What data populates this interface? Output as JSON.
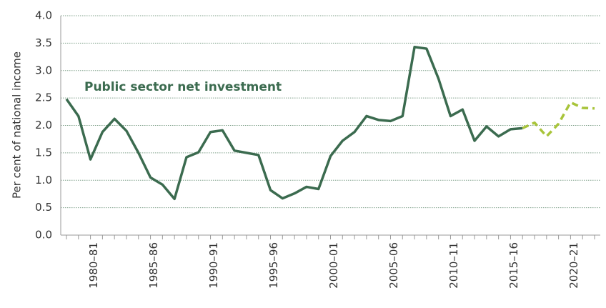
{
  "chart_data": {
    "type": "line",
    "ylabel": "Per cent of national income",
    "annotations": [
      "Public sector net investment"
    ],
    "categories": [
      null,
      null,
      "1980–81",
      null,
      null,
      null,
      null,
      "1985–86",
      null,
      null,
      null,
      null,
      "1990–91",
      null,
      null,
      null,
      null,
      "1995–96",
      null,
      null,
      null,
      null,
      "2000–01",
      null,
      null,
      null,
      null,
      "2005–06",
      null,
      null,
      null,
      null,
      "2010–11",
      null,
      null,
      null,
      null,
      "2015–16",
      null,
      null,
      null,
      null,
      "2020–21",
      null,
      null
    ],
    "series": [
      {
        "color": "#3b6b4f",
        "dash": false,
        "values": [
          2.48,
          2.17,
          1.38,
          1.88,
          2.12,
          1.9,
          1.5,
          1.05,
          0.92,
          0.66,
          1.42,
          1.51,
          1.88,
          1.91,
          1.54,
          1.5,
          1.46,
          0.82,
          0.67,
          0.76,
          0.88,
          0.84,
          1.44,
          1.72,
          1.88,
          2.17,
          2.1,
          2.08,
          2.17,
          3.43,
          3.4,
          2.85,
          2.17,
          2.29,
          1.72,
          1.98,
          1.8,
          1.93,
          1.95,
          null,
          null,
          null,
          null,
          null,
          null
        ]
      },
      {
        "color": "#a8c43a",
        "dash": true,
        "values": [
          null,
          null,
          null,
          null,
          null,
          null,
          null,
          null,
          null,
          null,
          null,
          null,
          null,
          null,
          null,
          null,
          null,
          null,
          null,
          null,
          null,
          null,
          null,
          null,
          null,
          null,
          null,
          null,
          null,
          null,
          null,
          null,
          null,
          null,
          null,
          null,
          null,
          null,
          1.95,
          2.05,
          1.8,
          2.03,
          2.42,
          2.32,
          2.31
        ]
      }
    ],
    "ylim": [
      0,
      4
    ],
    "yticks": [
      {
        "value": 0,
        "label": "0.0"
      },
      0.5,
      {
        "value": 1,
        "label": "1.0"
      },
      1.5,
      {
        "value": 2,
        "label": "2.0"
      },
      2.5,
      {
        "value": 3,
        "label": "3.0"
      },
      3.5,
      {
        "value": 4,
        "label": "4.0"
      }
    ],
    "grid": true
  }
}
